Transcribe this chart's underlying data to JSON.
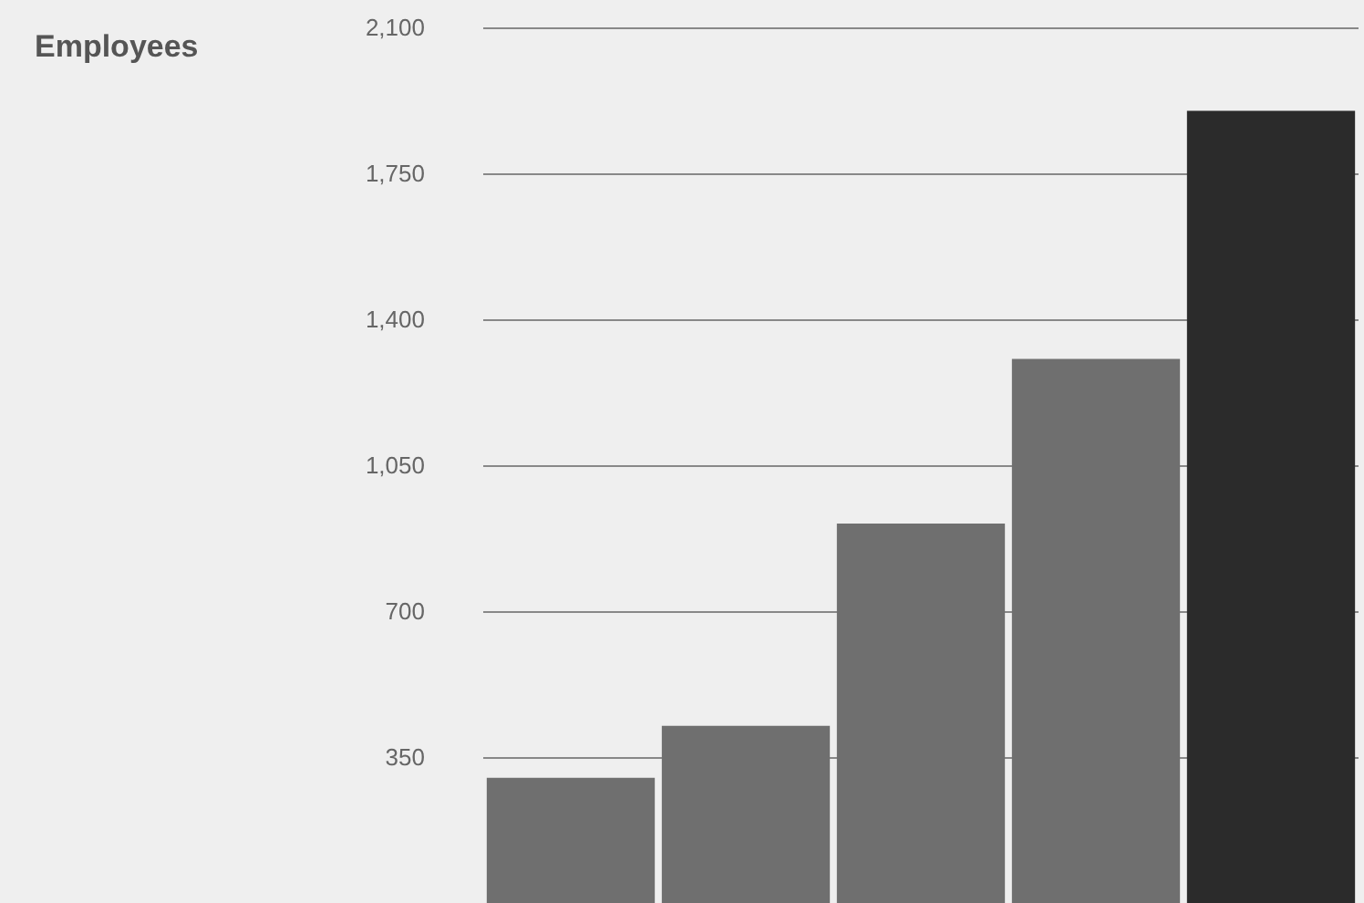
{
  "chart_data": {
    "type": "bar",
    "title": "Employees",
    "categories": [
      null,
      null,
      null,
      null,
      null
    ],
    "values": [
      300,
      425,
      910,
      1305,
      1900
    ],
    "colors": [
      "#6f6f6f",
      "#6f6f6f",
      "#6f6f6f",
      "#6f6f6f",
      "#2b2b2b"
    ],
    "ylim": [
      0,
      2100
    ],
    "yticks": [
      350,
      700,
      {
        "value": 1050,
        "label": "1,050"
      },
      {
        "value": 1400,
        "label": "1,400"
      },
      {
        "value": 1750,
        "label": "1,750"
      },
      {
        "value": 2100,
        "label": "2,100"
      }
    ],
    "grid": "y",
    "tick_labels": "y"
  }
}
